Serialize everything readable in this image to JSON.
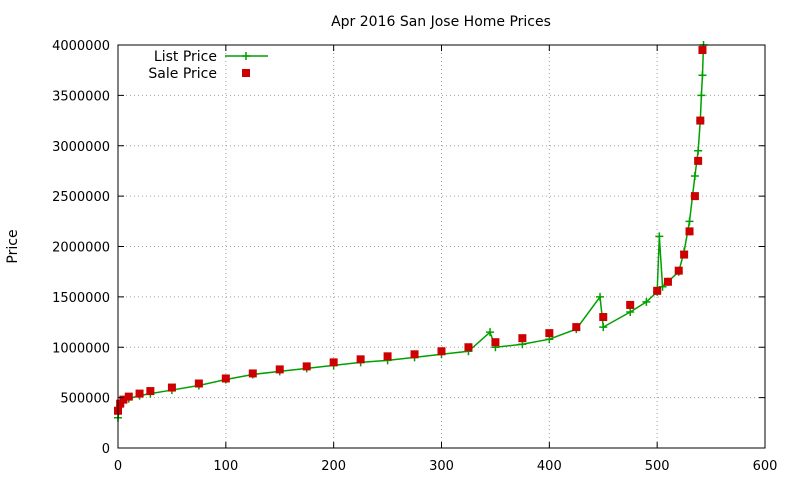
{
  "chart_data": {
    "type": "scatter",
    "title": "Apr 2016 San Jose Home Prices",
    "xlabel": "",
    "ylabel": "Price",
    "xlim": [
      0,
      600
    ],
    "ylim": [
      0,
      4000000
    ],
    "xticks": [
      0,
      100,
      200,
      300,
      400,
      500,
      600
    ],
    "yticks": [
      0,
      500000,
      1000000,
      1500000,
      2000000,
      2500000,
      3000000,
      3500000,
      4000000
    ],
    "grid": true,
    "legend_position": "top-left",
    "series": [
      {
        "name": "List Price",
        "style": "linespoints",
        "marker": "plus",
        "color": "#00a000",
        "x": [
          0,
          2,
          5,
          10,
          20,
          30,
          50,
          75,
          100,
          125,
          150,
          175,
          200,
          225,
          250,
          275,
          300,
          325,
          345,
          350,
          375,
          400,
          425,
          447,
          450,
          475,
          490,
          500,
          502,
          505,
          510,
          520,
          525,
          530,
          535,
          538,
          540,
          541,
          542,
          543
        ],
        "y": [
          300000,
          420000,
          460000,
          490000,
          520000,
          540000,
          575000,
          620000,
          680000,
          730000,
          760000,
          790000,
          820000,
          850000,
          870000,
          900000,
          930000,
          960000,
          1150000,
          1000000,
          1030000,
          1080000,
          1180000,
          1500000,
          1200000,
          1350000,
          1450000,
          1550000,
          2100000,
          1600000,
          1650000,
          1750000,
          1950000,
          2250000,
          2700000,
          2950000,
          3250000,
          3500000,
          3700000,
          4000000
        ]
      },
      {
        "name": "Sale Price",
        "style": "points",
        "marker": "square",
        "color": "#cc0000",
        "x": [
          0,
          2,
          5,
          10,
          20,
          30,
          50,
          75,
          100,
          125,
          150,
          175,
          200,
          225,
          250,
          275,
          300,
          325,
          350,
          375,
          400,
          425,
          450,
          475,
          500,
          510,
          520,
          525,
          530,
          535,
          538,
          540,
          542
        ],
        "y": [
          370000,
          440000,
          480000,
          510000,
          540000,
          565000,
          600000,
          640000,
          690000,
          740000,
          780000,
          810000,
          850000,
          880000,
          910000,
          930000,
          960000,
          1000000,
          1050000,
          1090000,
          1140000,
          1200000,
          1300000,
          1420000,
          1560000,
          1650000,
          1760000,
          1920000,
          2150000,
          2500000,
          2850000,
          3250000,
          3950000
        ]
      }
    ]
  }
}
